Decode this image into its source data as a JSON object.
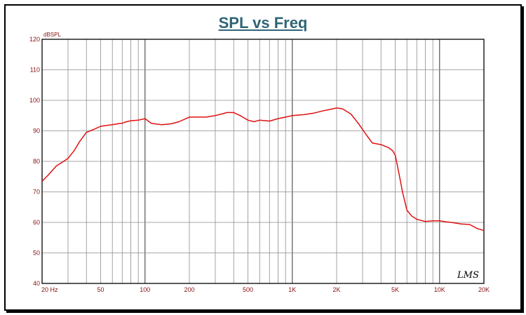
{
  "chart_data": {
    "type": "line",
    "title": "SPL vs Freq",
    "ylabel": "dBSPL",
    "xlabel": "",
    "x_scale": "log",
    "xlim": [
      20,
      20000
    ],
    "ylim": [
      40,
      120
    ],
    "y_ticks": [
      40,
      50,
      60,
      70,
      80,
      90,
      100,
      110,
      120
    ],
    "x_ticks": [
      {
        "value": 20,
        "label": "20  Hz"
      },
      {
        "value": 50,
        "label": "50"
      },
      {
        "value": 100,
        "label": "100"
      },
      {
        "value": 200,
        "label": "200"
      },
      {
        "value": 500,
        "label": "500"
      },
      {
        "value": 1000,
        "label": "1K"
      },
      {
        "value": 2000,
        "label": "2K"
      },
      {
        "value": 5000,
        "label": "5K"
      },
      {
        "value": 10000,
        "label": "10K"
      },
      {
        "value": 20000,
        "label": "20K"
      }
    ],
    "grid": true,
    "line_color": "#e01010",
    "series": [
      {
        "x": [
          20,
          22,
          25,
          28,
          30,
          33,
          36,
          40,
          45,
          50,
          55,
          60,
          65,
          70,
          75,
          80,
          90,
          100,
          110,
          120,
          130,
          150,
          170,
          200,
          230,
          260,
          300,
          330,
          360,
          400,
          450,
          500,
          550,
          600,
          700,
          800,
          900,
          1000,
          1200,
          1400,
          1600,
          1800,
          2000,
          2200,
          2500,
          2800,
          3200,
          3500,
          4000,
          4500,
          4800,
          5000,
          5300,
          5600,
          6000,
          6500,
          7000,
          8000,
          9000,
          10000,
          11000,
          12000,
          14000,
          16000,
          18000,
          20000
        ],
        "y": [
          73.5,
          75.5,
          78.5,
          80.0,
          81.0,
          83.5,
          86.5,
          89.5,
          90.5,
          91.5,
          91.8,
          92.0,
          92.3,
          92.5,
          93.0,
          93.3,
          93.5,
          94.0,
          92.5,
          92.2,
          92.0,
          92.3,
          93.0,
          94.5,
          94.5,
          94.5,
          95.0,
          95.5,
          96.0,
          96.0,
          94.8,
          93.5,
          93.0,
          93.5,
          93.2,
          94.0,
          94.5,
          95.0,
          95.3,
          95.8,
          96.5,
          97.0,
          97.5,
          97.2,
          95.5,
          92.5,
          88.5,
          86.0,
          85.5,
          84.5,
          83.5,
          82.0,
          76.0,
          70.0,
          64.0,
          62.0,
          61.0,
          60.3,
          60.5,
          60.5,
          60.2,
          60.0,
          59.5,
          59.3,
          58.0,
          57.3
        ]
      }
    ]
  },
  "logo": {
    "text": "LMS"
  }
}
